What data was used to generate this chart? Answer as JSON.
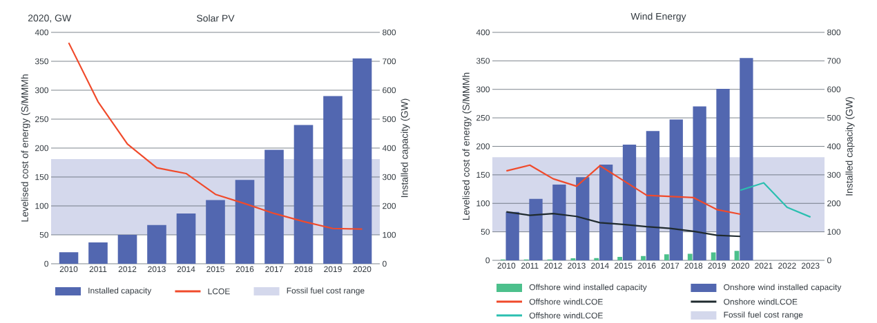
{
  "chart_data": [
    {
      "type": "bar",
      "title": "Solar PV",
      "annotations": [
        "2020, GW"
      ],
      "ylabel": "Levelised cost of energy (S/MMMh",
      "y2label": "Installed capacity (GW)",
      "categories": [
        "2010",
        "2011",
        "2012",
        "2013",
        "2014",
        "2015",
        "2016",
        "2017",
        "2018",
        "2019",
        "2020"
      ],
      "series": [
        {
          "name": "Installed capacity",
          "axis": "y2",
          "color": "#5267b0",
          "values": [
            40,
            74,
            100,
            134,
            174,
            220,
            290,
            394,
            480,
            580,
            710
          ]
        },
        {
          "name": "LCOE",
          "type": "line",
          "color": "#f04a2b",
          "values": [
            382,
            280,
            207,
            166,
            156,
            120,
            104,
            87,
            73,
            61,
            60
          ]
        }
      ],
      "bands": [
        {
          "axis": "y",
          "from": 50,
          "to": 181,
          "label": "Fossil fuel cost range",
          "color": "#d4d8ec"
        }
      ],
      "ylim": [
        0,
        400
      ],
      "yticks": [
        0,
        50,
        100,
        150,
        200,
        250,
        300,
        350,
        400
      ],
      "y2lim": [
        0,
        800
      ],
      "y2ticks": [
        0,
        100,
        200,
        300,
        400,
        500,
        600,
        700,
        800
      ],
      "grid": "y",
      "legend": "bottom"
    },
    {
      "type": "bar",
      "title": "Wind Energy",
      "ylabel": "Levelised cost of energy (S/MMMh",
      "y2label": "Installed capacity (GW)",
      "categories": [
        "2010",
        "2011",
        "2012",
        "2013",
        "2014",
        "2015",
        "2016",
        "2017",
        "2018",
        "2019",
        "2020",
        "2021",
        "2022",
        "2023"
      ],
      "series": [
        {
          "name": "Offshore wind installed capacity",
          "axis": "y2",
          "color": "#4cc08c",
          "values": [
            3,
            3,
            3,
            7,
            8,
            12,
            15,
            21,
            23,
            28,
            33,
            null,
            null,
            null
          ]
        },
        {
          "name": "Onshore wind installed capacity",
          "axis": "y2",
          "color": "#5267b0",
          "values": [
            170,
            216,
            266,
            292,
            336,
            406,
            454,
            494,
            540,
            602,
            710,
            null,
            null,
            null
          ]
        },
        {
          "name": "Offshore windLCOE",
          "type": "line",
          "color": "#f04a2b",
          "values": [
            157,
            167,
            143,
            130,
            166,
            140,
            114,
            112,
            110,
            89,
            81,
            null,
            null,
            null
          ]
        },
        {
          "name": "Onshore windLCOE",
          "type": "line",
          "color": "#1f2a2e",
          "values": [
            85,
            79,
            82,
            77,
            66,
            63,
            59,
            56,
            51,
            44,
            42,
            null,
            null,
            null
          ]
        },
        {
          "name": "Offshore windLCOE",
          "type": "line",
          "color": "#2bbfb0",
          "values": [
            null,
            null,
            null,
            null,
            null,
            null,
            null,
            null,
            null,
            null,
            123,
            136,
            93,
            76
          ]
        }
      ],
      "bands": [
        {
          "axis": "y",
          "from": 50,
          "to": 181,
          "label": "Fossil fuel cost range",
          "color": "#d4d8ec"
        }
      ],
      "ylim": [
        0,
        400
      ],
      "yticks": [
        0,
        50,
        100,
        150,
        200,
        250,
        300,
        350,
        400
      ],
      "y2lim": [
        0,
        800
      ],
      "y2ticks": [
        0,
        100,
        200,
        300,
        400,
        500,
        600,
        700,
        800
      ],
      "grid": "y",
      "legend": "bottom"
    }
  ]
}
